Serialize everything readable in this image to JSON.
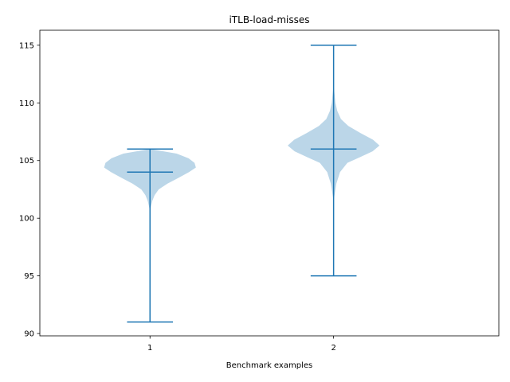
{
  "chart_data": {
    "type": "violin",
    "title": "iTLB-load-misses",
    "xlabel": "Benchmark examples",
    "ylabel": "",
    "x_ticks": [
      "1",
      "2"
    ],
    "y_ticks": [
      "90",
      "95",
      "100",
      "105",
      "110",
      "115"
    ],
    "ylim": [
      89.8,
      116.3
    ],
    "xlim": [
      0.4,
      2.9
    ],
    "colors": {
      "body": "#1f77b4",
      "body_opacity": 0.3,
      "lines": "#1f77b4"
    },
    "series": [
      {
        "position": 1,
        "min": 91,
        "max": 106,
        "median": 104,
        "density_profile": [
          [
            91.0,
            0.0
          ],
          [
            100.5,
            0.0
          ],
          [
            101.0,
            0.02
          ],
          [
            101.5,
            0.05
          ],
          [
            102.0,
            0.1
          ],
          [
            102.5,
            0.19
          ],
          [
            103.0,
            0.38
          ],
          [
            103.5,
            0.62
          ],
          [
            104.0,
            0.85
          ],
          [
            104.4,
            1.0
          ],
          [
            104.8,
            0.97
          ],
          [
            105.2,
            0.84
          ],
          [
            105.6,
            0.58
          ],
          [
            106.0,
            0.0
          ]
        ]
      },
      {
        "position": 2,
        "min": 95,
        "max": 115,
        "median": 106,
        "density_profile": [
          [
            95.0,
            0.0
          ],
          [
            101.5,
            0.0
          ],
          [
            102.0,
            0.02
          ],
          [
            103.0,
            0.06
          ],
          [
            104.0,
            0.14
          ],
          [
            104.8,
            0.3
          ],
          [
            105.3,
            0.58
          ],
          [
            105.8,
            0.85
          ],
          [
            106.3,
            1.0
          ],
          [
            106.8,
            0.86
          ],
          [
            107.4,
            0.58
          ],
          [
            108.0,
            0.32
          ],
          [
            108.6,
            0.16
          ],
          [
            109.3,
            0.08
          ],
          [
            110.0,
            0.04
          ],
          [
            110.8,
            0.02
          ],
          [
            111.5,
            0.0
          ]
        ]
      }
    ]
  }
}
